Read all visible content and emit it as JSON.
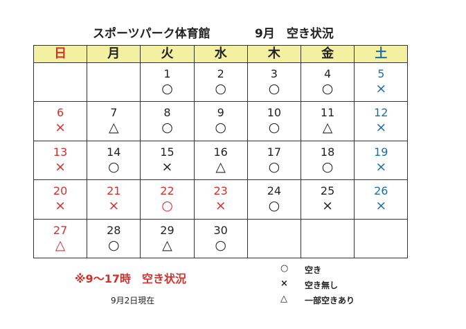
{
  "header": {
    "title": "スポーツパーク体育館",
    "month_title": "9月　空き状況"
  },
  "calendar": {
    "header_color": "#f4f0a2",
    "weekdays": [
      {
        "label": "日",
        "color": "#d3302c"
      },
      {
        "label": "月",
        "color": "#222222"
      },
      {
        "label": "火",
        "color": "#222222"
      },
      {
        "label": "水",
        "color": "#222222"
      },
      {
        "label": "木",
        "color": "#222222"
      },
      {
        "label": "金",
        "color": "#222222"
      },
      {
        "label": "土",
        "color": "#1a6ea8"
      }
    ],
    "weeks": [
      [
        null,
        null,
        {
          "day": 1,
          "status": "○",
          "color": "#222222"
        },
        {
          "day": 2,
          "status": "○",
          "color": "#222222"
        },
        {
          "day": 3,
          "status": "○",
          "color": "#222222"
        },
        {
          "day": 4,
          "status": "○",
          "color": "#222222"
        },
        {
          "day": 5,
          "status": "×",
          "color": "#1a6ea8"
        }
      ],
      [
        {
          "day": 6,
          "status": "×",
          "color": "#d3302c"
        },
        {
          "day": 7,
          "status": "△",
          "color": "#222222"
        },
        {
          "day": 8,
          "status": "○",
          "color": "#222222"
        },
        {
          "day": 9,
          "status": "○",
          "color": "#222222"
        },
        {
          "day": 10,
          "status": "○",
          "color": "#222222"
        },
        {
          "day": 11,
          "status": "△",
          "color": "#222222"
        },
        {
          "day": 12,
          "status": "×",
          "color": "#1a6ea8"
        }
      ],
      [
        {
          "day": 13,
          "status": "×",
          "color": "#d3302c"
        },
        {
          "day": 14,
          "status": "○",
          "color": "#222222"
        },
        {
          "day": 15,
          "status": "×",
          "color": "#222222"
        },
        {
          "day": 16,
          "status": "△",
          "color": "#222222"
        },
        {
          "day": 17,
          "status": "○",
          "color": "#222222"
        },
        {
          "day": 18,
          "status": "○",
          "color": "#222222"
        },
        {
          "day": 19,
          "status": "×",
          "color": "#1a6ea8"
        }
      ],
      [
        {
          "day": 20,
          "status": "×",
          "color": "#d3302c"
        },
        {
          "day": 21,
          "status": "×",
          "color": "#d3302c"
        },
        {
          "day": 22,
          "status": "○",
          "color": "#d3302c"
        },
        {
          "day": 23,
          "status": "×",
          "color": "#d3302c"
        },
        {
          "day": 24,
          "status": "○",
          "color": "#222222"
        },
        {
          "day": 25,
          "status": "×",
          "color": "#222222"
        },
        {
          "day": 26,
          "status": "×",
          "color": "#1a6ea8"
        }
      ],
      [
        {
          "day": 27,
          "status": "△",
          "color": "#d3302c"
        },
        {
          "day": 28,
          "status": "○",
          "color": "#222222"
        },
        {
          "day": 29,
          "status": "△",
          "color": "#222222"
        },
        {
          "day": 30,
          "status": "○",
          "color": "#222222"
        },
        null,
        null,
        null
      ]
    ]
  },
  "note": "※9～17時　空き状況",
  "as_of": "9月2日現在",
  "legend": [
    {
      "symbol": "○",
      "label": "空き"
    },
    {
      "symbol": "×",
      "label": "空き無し"
    },
    {
      "symbol": "△",
      "label": "一部空きあり"
    }
  ]
}
